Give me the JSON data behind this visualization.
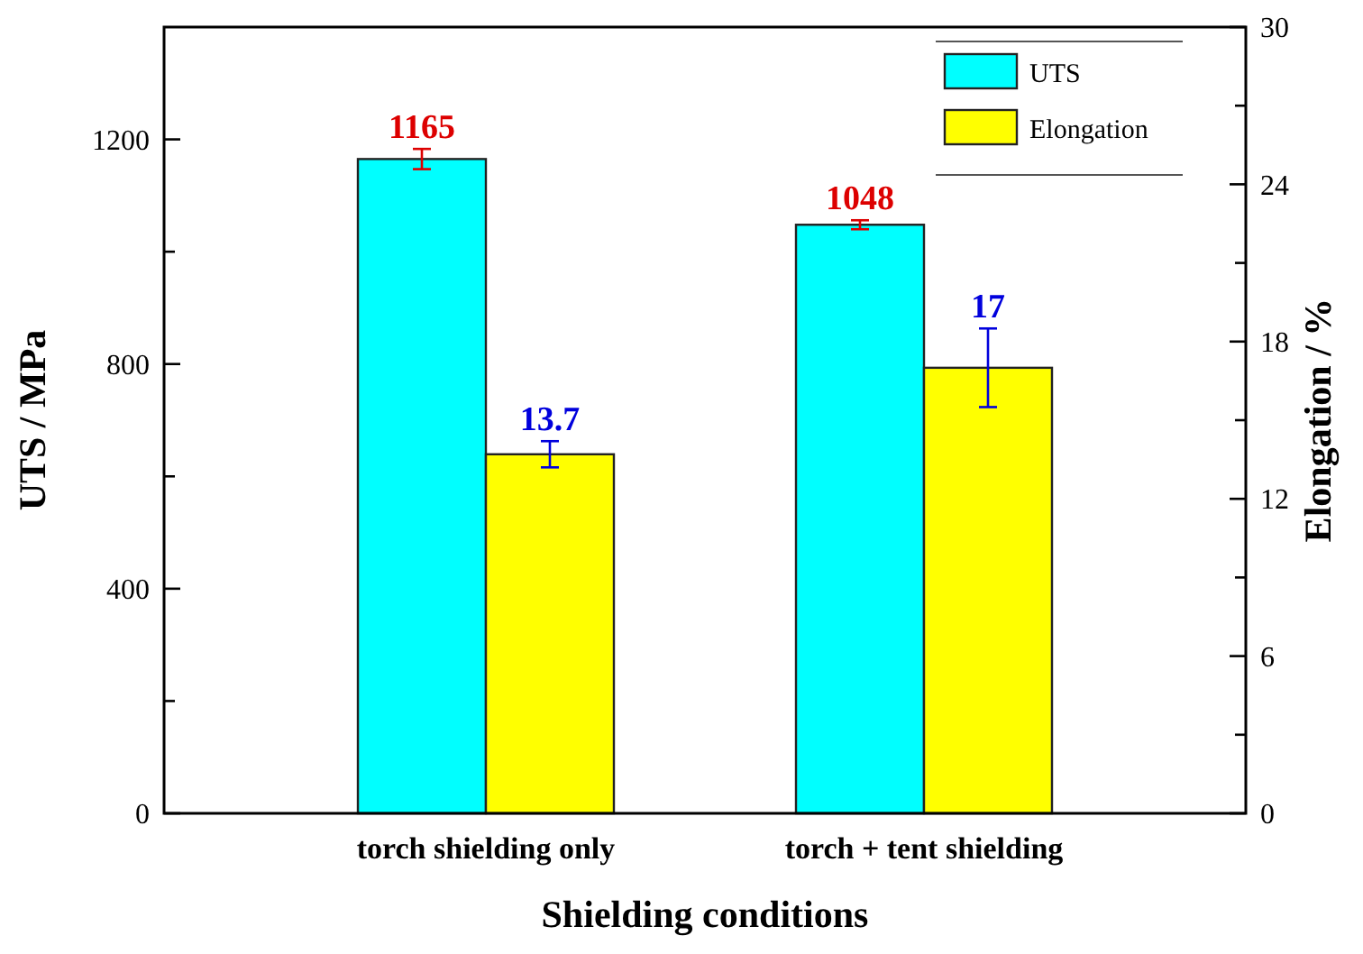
{
  "chart_data": {
    "type": "bar",
    "xlabel": "Shielding conditions",
    "ylabel": "UTS / MPa",
    "y2label": "Elongation / %",
    "categories": [
      "torch shielding only",
      "torch + tent shielding"
    ],
    "series": [
      {
        "name": "UTS",
        "color": "#00ffff",
        "values": [
          1165,
          1048
        ],
        "errors": [
          18,
          8
        ]
      },
      {
        "name": "Elongation",
        "color": "#ffff00",
        "values": [
          13.7,
          17
        ],
        "errors": [
          0.5,
          1.5
        ],
        "axis": "y2"
      }
    ],
    "ylim": [
      0,
      1400
    ],
    "yticks": [
      0,
      {
        "value": 200,
        "label": null
      },
      400,
      {
        "value": 600,
        "label": null
      },
      800,
      {
        "value": 1000,
        "label": null
      },
      1200
    ],
    "y2lim": [
      0,
      30
    ],
    "y2ticks": [
      0,
      {
        "value": 3,
        "label": null
      },
      6,
      {
        "value": 9,
        "label": null
      },
      12,
      {
        "value": 15,
        "label": null
      },
      18,
      {
        "value": 21,
        "label": null
      },
      24,
      {
        "value": 27,
        "label": null
      },
      30
    ],
    "data_labels": true,
    "legend": "top right"
  }
}
